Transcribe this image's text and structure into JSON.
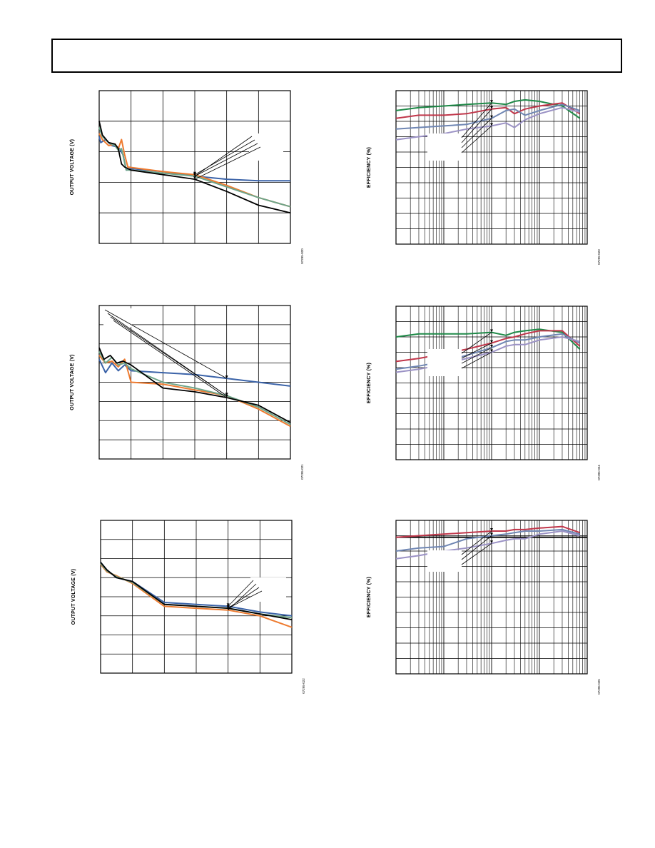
{
  "colors": {
    "black": "#000000",
    "blue": "#3b63a8",
    "orange": "#ee7b30",
    "teal": "#6fa58a",
    "green": "#1f8a48",
    "red": "#c0364a",
    "steel": "#6f86b3",
    "lavender": "#9b92c5"
  },
  "chart_data": [
    {
      "type": "line",
      "ylabel": "OUTPUT VOLTAGE (V)",
      "figure_id": "07295-020",
      "xlim": [
        0,
        6
      ],
      "ylim": [
        0,
        5
      ],
      "grid": true,
      "series": [
        {
          "color": "blue",
          "x": [
            0,
            0.05,
            0.2,
            0.4,
            0.6,
            0.75,
            0.85,
            1,
            2,
            3,
            4,
            5,
            6
          ],
          "y": [
            3.5,
            3.3,
            3.4,
            3.2,
            3.15,
            2.9,
            2.4,
            2.45,
            2.35,
            2.2,
            2.1,
            2.05,
            2.05
          ]
        },
        {
          "color": "orange",
          "x": [
            0,
            0.1,
            0.3,
            0.5,
            0.6,
            0.7,
            0.8,
            0.9,
            2,
            3,
            4,
            5,
            6
          ],
          "y": [
            3.6,
            3.4,
            3.2,
            3.25,
            3.1,
            3.4,
            2.9,
            2.5,
            2.35,
            2.25,
            1.9,
            1.5,
            1.2
          ]
        },
        {
          "color": "teal",
          "x": [
            0,
            0.1,
            0.3,
            0.5,
            0.6,
            0.7,
            0.85,
            1,
            2,
            3,
            4,
            5,
            6
          ],
          "y": [
            3.8,
            3.5,
            3.3,
            3.2,
            3.05,
            3.1,
            2.4,
            2.4,
            2.3,
            2.2,
            1.85,
            1.5,
            1.2
          ]
        },
        {
          "color": "black",
          "x": [
            0,
            0.1,
            0.3,
            0.5,
            0.6,
            0.7,
            0.8,
            1,
            2,
            3,
            4,
            5,
            6
          ],
          "y": [
            4.0,
            3.55,
            3.3,
            3.25,
            3.1,
            2.6,
            2.5,
            2.4,
            2.25,
            2.1,
            1.7,
            1.25,
            1.0
          ]
        }
      ],
      "callouts": [
        {
          "box": true
        }
      ]
    },
    {
      "type": "line",
      "ylabel": "OUTPUT VOLTAGE (V)",
      "figure_id": "07295-021",
      "xlim": [
        0,
        6
      ],
      "ylim": [
        0,
        8
      ],
      "grid": true,
      "series": [
        {
          "color": "blue",
          "x": [
            0,
            0.2,
            0.4,
            0.6,
            0.8,
            1,
            2,
            3,
            4,
            5,
            6
          ],
          "y": [
            5.2,
            4.5,
            5.0,
            4.6,
            4.9,
            4.6,
            4.5,
            4.4,
            4.2,
            4.0,
            3.8
          ]
        },
        {
          "color": "orange",
          "x": [
            0,
            0.2,
            0.4,
            0.6,
            0.8,
            1,
            2,
            3,
            4,
            5,
            6
          ],
          "y": [
            5.4,
            5.0,
            5.1,
            4.8,
            5.2,
            4.0,
            3.9,
            3.6,
            3.3,
            2.6,
            1.7
          ]
        },
        {
          "color": "teal",
          "x": [
            0,
            0.2,
            0.4,
            0.6,
            0.8,
            1,
            2,
            3,
            4,
            5,
            6
          ],
          "y": [
            5.6,
            5.0,
            5.3,
            4.9,
            5.0,
            4.7,
            4.0,
            3.7,
            3.3,
            2.7,
            1.8
          ]
        },
        {
          "color": "black",
          "x": [
            0,
            0.15,
            0.35,
            0.55,
            0.75,
            1,
            2,
            3,
            4,
            5,
            6
          ],
          "y": [
            5.8,
            5.2,
            5.4,
            5.0,
            5.1,
            4.9,
            3.7,
            3.5,
            3.2,
            2.8,
            1.9
          ]
        }
      ],
      "callouts": [
        {
          "box": true
        }
      ]
    },
    {
      "type": "line",
      "ylabel": "OUTPUT VOLTAGE (V)",
      "figure_id": "07295-022",
      "xlim": [
        0,
        6
      ],
      "ylim": [
        0,
        8
      ],
      "grid": true,
      "series": [
        {
          "color": "blue",
          "x": [
            0,
            0.2,
            0.5,
            1,
            2,
            3,
            4,
            5,
            6
          ],
          "y": [
            5.8,
            5.4,
            5.0,
            4.8,
            3.7,
            3.6,
            3.5,
            3.2,
            3.0
          ]
        },
        {
          "color": "orange",
          "x": [
            0,
            0.2,
            0.5,
            1,
            2,
            3,
            4,
            5,
            6
          ],
          "y": [
            5.7,
            5.3,
            5.1,
            4.7,
            3.5,
            3.4,
            3.3,
            3.0,
            2.4
          ]
        },
        {
          "color": "teal",
          "x": [
            0,
            0.2,
            0.5,
            1,
            2,
            3,
            4,
            5,
            6
          ],
          "y": [
            5.75,
            5.35,
            5.05,
            4.75,
            3.6,
            3.5,
            3.4,
            3.1,
            2.9
          ]
        },
        {
          "color": "black",
          "x": [
            0,
            0.2,
            0.5,
            1,
            2,
            3,
            4,
            5,
            6
          ],
          "y": [
            5.8,
            5.4,
            5.0,
            4.8,
            3.6,
            3.5,
            3.4,
            3.1,
            2.8
          ]
        }
      ],
      "callouts": [
        {
          "box": true
        }
      ]
    },
    {
      "type": "line",
      "ylabel": "EFFICIENCY (%)",
      "figure_id": "07295-023",
      "xscale": "log",
      "xlim": [
        0.1,
        1000
      ],
      "ylim": [
        0,
        100
      ],
      "grid": true,
      "series": [
        {
          "color": "green",
          "x": [
            0.1,
            0.3,
            1,
            3,
            10,
            20,
            30,
            50,
            100,
            300,
            700
          ],
          "y": [
            87,
            89,
            90,
            91,
            92,
            91,
            93,
            94,
            93,
            90,
            82
          ]
        },
        {
          "color": "red",
          "x": [
            0.1,
            0.3,
            1,
            3,
            10,
            20,
            30,
            50,
            100,
            300,
            700
          ],
          "y": [
            82,
            84,
            84,
            85,
            88,
            89,
            85,
            88,
            90,
            92,
            85
          ]
        },
        {
          "color": "steel",
          "x": [
            0.1,
            0.3,
            1,
            3,
            10,
            20,
            30,
            50,
            100,
            300,
            700
          ],
          "y": [
            75,
            76,
            77,
            78,
            82,
            87,
            88,
            84,
            87,
            91,
            87
          ]
        },
        {
          "color": "lavender",
          "x": [
            0.1,
            0.3,
            1,
            3,
            10,
            20,
            30,
            50,
            100,
            300,
            700
          ],
          "y": [
            68,
            70,
            72,
            75,
            77,
            79,
            76,
            81,
            85,
            89,
            86
          ]
        }
      ],
      "callouts": [
        {
          "box": true
        }
      ]
    },
    {
      "type": "line",
      "ylabel": "EFFICIENCY (%)",
      "figure_id": "07295-024",
      "xscale": "log",
      "xlim": [
        0.1,
        1000
      ],
      "ylim": [
        0,
        100
      ],
      "grid": true,
      "series": [
        {
          "color": "green",
          "x": [
            0.1,
            0.3,
            1,
            3,
            10,
            20,
            30,
            50,
            100,
            300,
            700
          ],
          "y": [
            80,
            82,
            82,
            82,
            83,
            81,
            83,
            84,
            85,
            83,
            72
          ]
        },
        {
          "color": "red",
          "x": [
            0.1,
            0.3,
            1,
            3,
            10,
            20,
            30,
            50,
            100,
            300,
            700
          ],
          "y": [
            64,
            66,
            69,
            72,
            76,
            79,
            80,
            82,
            84,
            84,
            74
          ]
        },
        {
          "color": "steel",
          "x": [
            0.1,
            0.3,
            1,
            3,
            10,
            20,
            30,
            50,
            100,
            300,
            700
          ],
          "y": [
            59,
            61,
            64,
            68,
            73,
            77,
            78,
            78,
            80,
            82,
            76
          ]
        },
        {
          "color": "lavender",
          "x": [
            0.1,
            0.3,
            1,
            3,
            10,
            20,
            30,
            50,
            100,
            300,
            700
          ],
          "y": [
            57,
            59,
            62,
            66,
            70,
            74,
            75,
            75,
            78,
            80,
            77
          ]
        }
      ],
      "callouts": [
        {
          "box": true
        }
      ]
    },
    {
      "type": "line",
      "ylabel": "EFFICIENCY (%)",
      "figure_id": "07295-025",
      "xscale": "log",
      "xlim": [
        0.1,
        1000
      ],
      "ylim": [
        0,
        100
      ],
      "grid": true,
      "hline_y": 89,
      "series": [
        {
          "color": "red",
          "x": [
            0.1,
            0.3,
            1,
            3,
            10,
            20,
            30,
            50,
            100,
            300,
            700
          ],
          "y": [
            89,
            90,
            91,
            92,
            93,
            93,
            94,
            94,
            95,
            96,
            92
          ]
        },
        {
          "color": "steel",
          "x": [
            0.1,
            0.3,
            1,
            3,
            10,
            20,
            30,
            50,
            100,
            300,
            700
          ],
          "y": [
            80,
            82,
            83,
            88,
            90,
            91,
            92,
            93,
            93,
            94,
            91
          ]
        },
        {
          "color": "lavender",
          "x": [
            0.1,
            0.3,
            1,
            3,
            10,
            20,
            30,
            50,
            100,
            300,
            700
          ],
          "y": [
            75,
            77,
            80,
            82,
            85,
            87,
            88,
            88,
            91,
            93,
            90
          ]
        }
      ],
      "callouts": [
        {
          "box": true
        }
      ]
    }
  ]
}
